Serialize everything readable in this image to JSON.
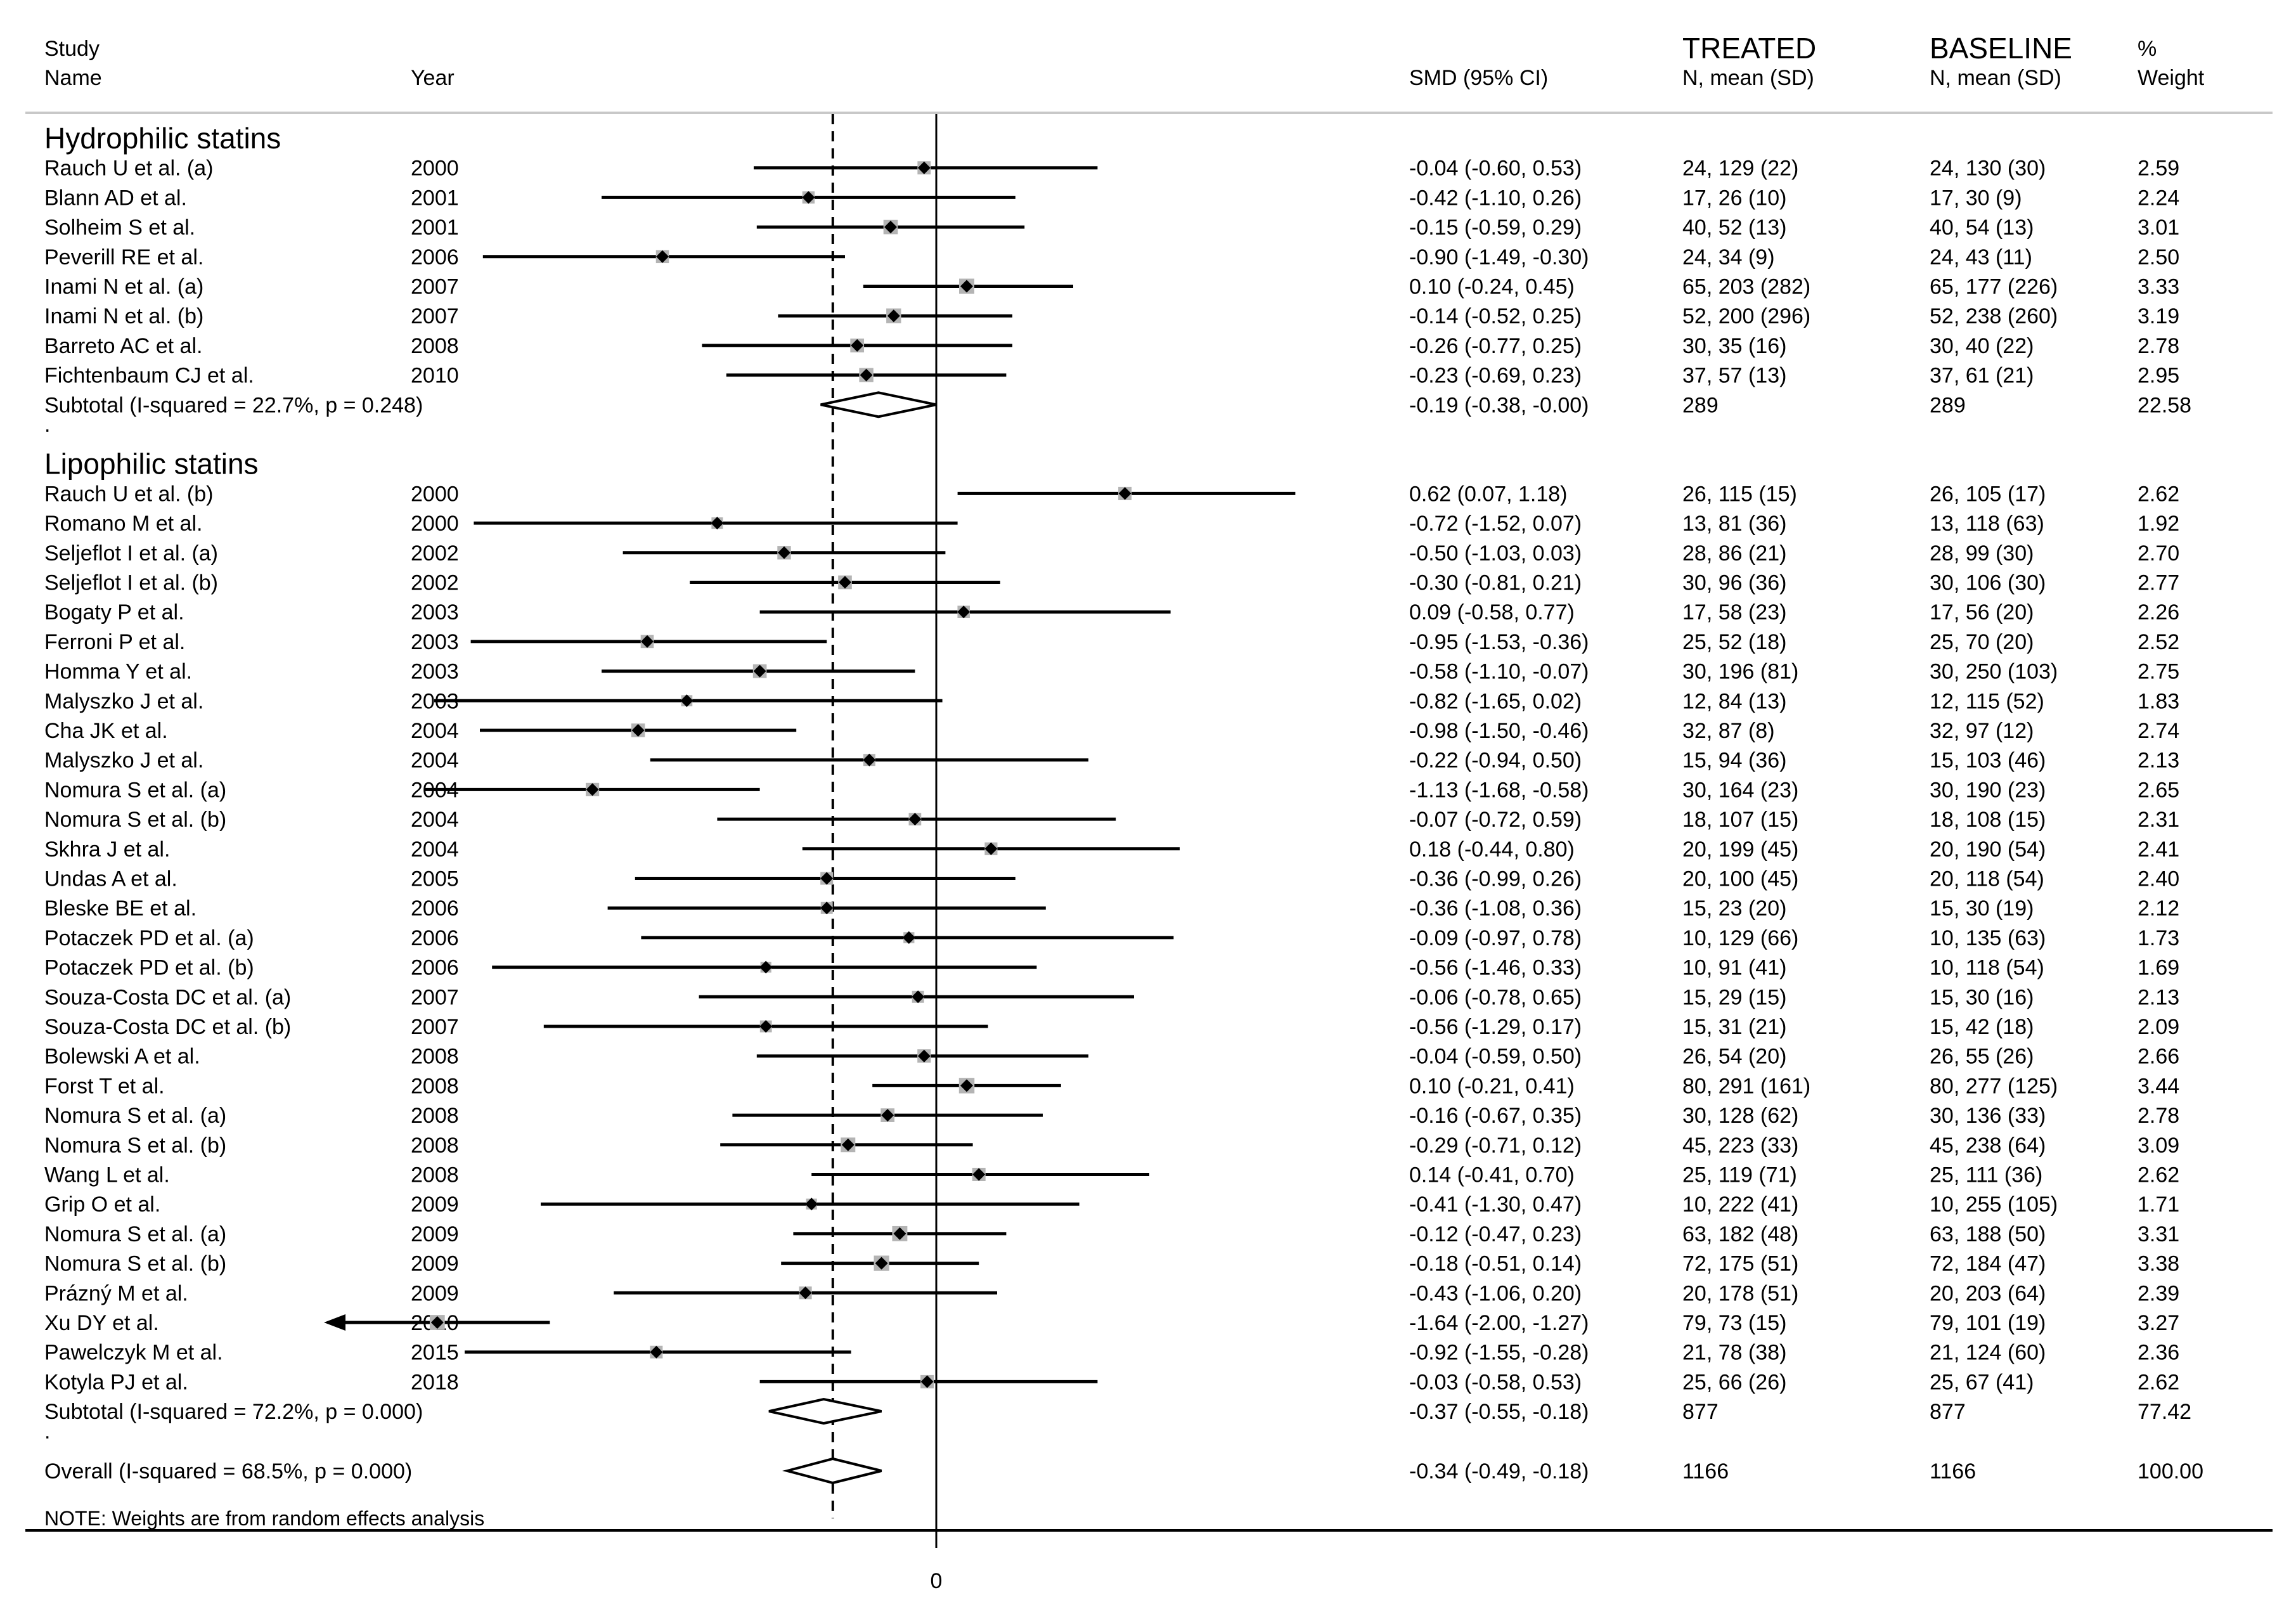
{
  "chart_data": {
    "type": "forest",
    "header": {
      "study": "Study",
      "name": "Name",
      "year": "Year",
      "smd": "SMD (95% CI)",
      "treated_top": "TREATED",
      "treated_sub": "N, mean (SD)",
      "baseline_top": "BASELINE",
      "baseline_sub": "N, mean (SD)",
      "weight_top": "%",
      "weight_sub": "Weight"
    },
    "x_range": [
      -2.0,
      1.3
    ],
    "null_line": 0,
    "overall_line": -0.34,
    "x_tick_labels": [
      {
        "value": 0,
        "label": "0"
      }
    ],
    "groups": [
      {
        "title": "Hydrophilic statins",
        "studies": [
          {
            "name": "Rauch U et al. (a)",
            "year": "2000",
            "smd": -0.04,
            "lo": -0.6,
            "hi": 0.53,
            "ci": "-0.04 (-0.60, 0.53)",
            "treated": "24, 129 (22)",
            "baseline": "24, 130 (30)",
            "weight": "2.59"
          },
          {
            "name": "Blann AD et al.",
            "year": "2001",
            "smd": -0.42,
            "lo": -1.1,
            "hi": 0.26,
            "ci": "-0.42 (-1.10, 0.26)",
            "treated": "17, 26 (10)",
            "baseline": "17, 30 (9)",
            "weight": "2.24"
          },
          {
            "name": "Solheim S et al.",
            "year": "2001",
            "smd": -0.15,
            "lo": -0.59,
            "hi": 0.29,
            "ci": "-0.15 (-0.59, 0.29)",
            "treated": "40, 52 (13)",
            "baseline": "40, 54 (13)",
            "weight": "3.01"
          },
          {
            "name": "Peverill RE et al.",
            "year": "2006",
            "smd": -0.9,
            "lo": -1.49,
            "hi": -0.3,
            "ci": "-0.90 (-1.49, -0.30)",
            "treated": "24, 34 (9)",
            "baseline": "24, 43 (11)",
            "weight": "2.50"
          },
          {
            "name": "Inami N et al. (a)",
            "year": "2007",
            "smd": 0.1,
            "lo": -0.24,
            "hi": 0.45,
            "ci": "0.10 (-0.24, 0.45)",
            "treated": "65, 203 (282)",
            "baseline": "65, 177 (226)",
            "weight": "3.33"
          },
          {
            "name": "Inami N et al. (b)",
            "year": "2007",
            "smd": -0.14,
            "lo": -0.52,
            "hi": 0.25,
            "ci": "-0.14 (-0.52, 0.25)",
            "treated": "52, 200 (296)",
            "baseline": "52, 238 (260)",
            "weight": "3.19"
          },
          {
            "name": "Barreto AC et al.",
            "year": "2008",
            "smd": -0.26,
            "lo": -0.77,
            "hi": 0.25,
            "ci": "-0.26 (-0.77, 0.25)",
            "treated": "30, 35 (16)",
            "baseline": "30, 40 (22)",
            "weight": "2.78"
          },
          {
            "name": "Fichtenbaum CJ et al.",
            "year": "2010",
            "smd": -0.23,
            "lo": -0.69,
            "hi": 0.23,
            "ci": "-0.23 (-0.69, 0.23)",
            "treated": "37, 57 (13)",
            "baseline": "37, 61 (21)",
            "weight": "2.95"
          }
        ],
        "subtotal": {
          "label": "Subtotal  (I-squared = 22.7%, p = 0.248)",
          "smd": -0.19,
          "lo": -0.38,
          "hi": -0.0,
          "ci": "-0.19 (-0.38, -0.00)",
          "treated": "289",
          "baseline": "289",
          "weight": "22.58"
        }
      },
      {
        "title": "Lipophilic statins",
        "studies": [
          {
            "name": "Rauch U et al. (b)",
            "year": "2000",
            "smd": 0.62,
            "lo": 0.07,
            "hi": 1.18,
            "ci": "0.62 (0.07, 1.18)",
            "treated": "26, 115 (15)",
            "baseline": "26, 105 (17)",
            "weight": "2.62"
          },
          {
            "name": "Romano M et al.",
            "year": "2000",
            "smd": -0.72,
            "lo": -1.52,
            "hi": 0.07,
            "ci": "-0.72 (-1.52, 0.07)",
            "treated": "13, 81 (36)",
            "baseline": "13, 118 (63)",
            "weight": "1.92"
          },
          {
            "name": "Seljeflot I et al. (a)",
            "year": "2002",
            "smd": -0.5,
            "lo": -1.03,
            "hi": 0.03,
            "ci": "-0.50 (-1.03, 0.03)",
            "treated": "28, 86 (21)",
            "baseline": "28, 99 (30)",
            "weight": "2.70"
          },
          {
            "name": "Seljeflot I et al. (b)",
            "year": "2002",
            "smd": -0.3,
            "lo": -0.81,
            "hi": 0.21,
            "ci": "-0.30 (-0.81, 0.21)",
            "treated": "30, 96 (36)",
            "baseline": "30, 106 (30)",
            "weight": "2.77"
          },
          {
            "name": "Bogaty P et al.",
            "year": "2003",
            "smd": 0.09,
            "lo": -0.58,
            "hi": 0.77,
            "ci": "0.09 (-0.58, 0.77)",
            "treated": "17, 58 (23)",
            "baseline": "17, 56 (20)",
            "weight": "2.26"
          },
          {
            "name": "Ferroni P et al.",
            "year": "2003",
            "smd": -0.95,
            "lo": -1.53,
            "hi": -0.36,
            "ci": "-0.95 (-1.53, -0.36)",
            "treated": "25, 52 (18)",
            "baseline": "25, 70 (20)",
            "weight": "2.52"
          },
          {
            "name": "Homma Y et al.",
            "year": "2003",
            "smd": -0.58,
            "lo": -1.1,
            "hi": -0.07,
            "ci": "-0.58 (-1.10, -0.07)",
            "treated": "30, 196 (81)",
            "baseline": "30, 250 (103)",
            "weight": "2.75"
          },
          {
            "name": "Malyszko J et al.",
            "year": "2003",
            "smd": -0.82,
            "lo": -1.65,
            "hi": 0.02,
            "ci": "-0.82 (-1.65, 0.02)",
            "treated": "12, 84 (13)",
            "baseline": "12, 115 (52)",
            "weight": "1.83"
          },
          {
            "name": "Cha JK et al.",
            "year": "2004",
            "smd": -0.98,
            "lo": -1.5,
            "hi": -0.46,
            "ci": "-0.98 (-1.50, -0.46)",
            "treated": "32, 87 (8)",
            "baseline": "32, 97 (12)",
            "weight": "2.74"
          },
          {
            "name": "Malyszko J et al.",
            "year": "2004",
            "smd": -0.22,
            "lo": -0.94,
            "hi": 0.5,
            "ci": "-0.22 (-0.94, 0.50)",
            "treated": "15, 94 (36)",
            "baseline": "15, 103 (46)",
            "weight": "2.13"
          },
          {
            "name": "Nomura S et al. (a)",
            "year": "2004",
            "smd": -1.13,
            "lo": -1.68,
            "hi": -0.58,
            "ci": "-1.13 (-1.68, -0.58)",
            "treated": "30, 164 (23)",
            "baseline": "30, 190 (23)",
            "weight": "2.65"
          },
          {
            "name": "Nomura S et al. (b)",
            "year": "2004",
            "smd": -0.07,
            "lo": -0.72,
            "hi": 0.59,
            "ci": "-0.07 (-0.72, 0.59)",
            "treated": "18, 107 (15)",
            "baseline": "18, 108 (15)",
            "weight": "2.31"
          },
          {
            "name": "Skhra J et al.",
            "year": "2004",
            "smd": 0.18,
            "lo": -0.44,
            "hi": 0.8,
            "ci": "0.18 (-0.44, 0.80)",
            "treated": "20, 199 (45)",
            "baseline": "20, 190 (54)",
            "weight": "2.41"
          },
          {
            "name": "Undas A et al.",
            "year": "2005",
            "smd": -0.36,
            "lo": -0.99,
            "hi": 0.26,
            "ci": "-0.36 (-0.99, 0.26)",
            "treated": "20, 100 (45)",
            "baseline": "20, 118 (54)",
            "weight": "2.40"
          },
          {
            "name": "Bleske BE et al.",
            "year": "2006",
            "smd": -0.36,
            "lo": -1.08,
            "hi": 0.36,
            "ci": "-0.36 (-1.08, 0.36)",
            "treated": "15, 23 (20)",
            "baseline": "15, 30 (19)",
            "weight": "2.12"
          },
          {
            "name": "Potaczek PD et al. (a)",
            "year": "2006",
            "smd": -0.09,
            "lo": -0.97,
            "hi": 0.78,
            "ci": "-0.09 (-0.97, 0.78)",
            "treated": "10, 129 (66)",
            "baseline": "10, 135 (63)",
            "weight": "1.73"
          },
          {
            "name": "Potaczek PD et al. (b)",
            "year": "2006",
            "smd": -0.56,
            "lo": -1.46,
            "hi": 0.33,
            "ci": "-0.56 (-1.46, 0.33)",
            "treated": "10, 91 (41)",
            "baseline": "10, 118 (54)",
            "weight": "1.69"
          },
          {
            "name": "Souza-Costa DC et al. (a)",
            "year": "2007",
            "smd": -0.06,
            "lo": -0.78,
            "hi": 0.65,
            "ci": "-0.06 (-0.78, 0.65)",
            "treated": "15, 29 (15)",
            "baseline": "15, 30 (16)",
            "weight": "2.13"
          },
          {
            "name": "Souza-Costa DC et al. (b)",
            "year": "2007",
            "smd": -0.56,
            "lo": -1.29,
            "hi": 0.17,
            "ci": "-0.56 (-1.29, 0.17)",
            "treated": "15, 31 (21)",
            "baseline": "15, 42 (18)",
            "weight": "2.09"
          },
          {
            "name": "Bolewski A et al.",
            "year": "2008",
            "smd": -0.04,
            "lo": -0.59,
            "hi": 0.5,
            "ci": "-0.04 (-0.59, 0.50)",
            "treated": "26, 54 (20)",
            "baseline": "26, 55 (26)",
            "weight": "2.66"
          },
          {
            "name": "Forst T et al.",
            "year": "2008",
            "smd": 0.1,
            "lo": -0.21,
            "hi": 0.41,
            "ci": "0.10 (-0.21, 0.41)",
            "treated": "80, 291 (161)",
            "baseline": "80, 277 (125)",
            "weight": "3.44"
          },
          {
            "name": "Nomura S et al. (a)",
            "year": "2008",
            "smd": -0.16,
            "lo": -0.67,
            "hi": 0.35,
            "ci": "-0.16 (-0.67, 0.35)",
            "treated": "30, 128 (62)",
            "baseline": "30, 136 (33)",
            "weight": "2.78"
          },
          {
            "name": "Nomura S et al. (b)",
            "year": "2008",
            "smd": -0.29,
            "lo": -0.71,
            "hi": 0.12,
            "ci": "-0.29 (-0.71, 0.12)",
            "treated": "45, 223 (33)",
            "baseline": "45, 238 (64)",
            "weight": "3.09"
          },
          {
            "name": "Wang L et al.",
            "year": "2008",
            "smd": 0.14,
            "lo": -0.41,
            "hi": 0.7,
            "ci": "0.14 (-0.41, 0.70)",
            "treated": "25, 119 (71)",
            "baseline": "25, 111 (36)",
            "weight": "2.62"
          },
          {
            "name": "Grip O et al.",
            "year": "2009",
            "smd": -0.41,
            "lo": -1.3,
            "hi": 0.47,
            "ci": "-0.41 (-1.30, 0.47)",
            "treated": "10, 222 (41)",
            "baseline": "10, 255 (105)",
            "weight": "1.71"
          },
          {
            "name": "Nomura S et al. (a)",
            "year": "2009",
            "smd": -0.12,
            "lo": -0.47,
            "hi": 0.23,
            "ci": "-0.12 (-0.47, 0.23)",
            "treated": "63, 182 (48)",
            "baseline": "63, 188 (50)",
            "weight": "3.31"
          },
          {
            "name": "Nomura S et al. (b)",
            "year": "2009",
            "smd": -0.18,
            "lo": -0.51,
            "hi": 0.14,
            "ci": "-0.18 (-0.51, 0.14)",
            "treated": "72, 175 (51)",
            "baseline": "72, 184 (47)",
            "weight": "3.38"
          },
          {
            "name": "Prázný M et al.",
            "year": "2009",
            "smd": -0.43,
            "lo": -1.06,
            "hi": 0.2,
            "ci": "-0.43 (-1.06, 0.20)",
            "treated": "20, 178 (51)",
            "baseline": "20, 203 (64)",
            "weight": "2.39"
          },
          {
            "name": "Xu DY et al.",
            "year": "2010",
            "smd": -1.64,
            "lo": -2.0,
            "hi": -1.27,
            "ci": "-1.64 (-2.00, -1.27)",
            "treated": "79, 73 (15)",
            "baseline": "79, 101 (19)",
            "weight": "3.27",
            "arrow_left": true
          },
          {
            "name": "Pawelczyk M et al.",
            "year": "2015",
            "smd": -0.92,
            "lo": -1.55,
            "hi": -0.28,
            "ci": "-0.92 (-1.55, -0.28)",
            "treated": "21, 78 (38)",
            "baseline": "21, 124 (60)",
            "weight": "2.36"
          },
          {
            "name": "Kotyla PJ et al.",
            "year": "2018",
            "smd": -0.03,
            "lo": -0.58,
            "hi": 0.53,
            "ci": "-0.03 (-0.58, 0.53)",
            "treated": "25, 66 (26)",
            "baseline": "25, 67 (41)",
            "weight": "2.62"
          }
        ],
        "subtotal": {
          "label": "Subtotal  (I-squared = 72.2%, p = 0.000)",
          "smd": -0.37,
          "lo": -0.55,
          "hi": -0.18,
          "ci": "-0.37 (-0.55, -0.18)",
          "treated": "877",
          "baseline": "877",
          "weight": "77.42"
        }
      }
    ],
    "overall": {
      "label": "Overall  (I-squared = 68.5%, p = 0.000)",
      "smd": -0.34,
      "lo": -0.49,
      "hi": -0.18,
      "ci": "-0.34 (-0.49, -0.18)",
      "treated": "1166",
      "baseline": "1166",
      "weight": "100.00"
    },
    "separator": ".",
    "note": "NOTE: Weights are from random effects analysis"
  }
}
